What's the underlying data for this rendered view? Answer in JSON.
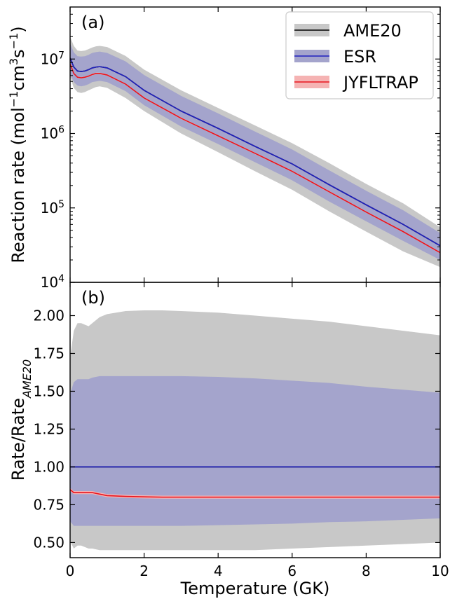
{
  "chart_data": [
    {
      "type": "area",
      "panel_label": "(a)",
      "ylabel": "Reaction rate (mol⁻¹cm³s⁻¹)",
      "yscale": "log",
      "xlim": [
        0,
        10
      ],
      "ylim": [
        10000,
        50000000
      ],
      "yticks": [
        10000,
        100000,
        1000000,
        10000000
      ],
      "ytick_labels": [
        {
          "base": "10",
          "exp": "4"
        },
        {
          "base": "10",
          "exp": "5"
        },
        {
          "base": "10",
          "exp": "6"
        },
        {
          "base": "10",
          "exp": "7"
        }
      ],
      "legend_position": "top-right",
      "x": [
        0,
        0.1,
        0.2,
        0.3,
        0.4,
        0.5,
        0.6,
        0.7,
        0.8,
        1,
        1.5,
        2,
        3,
        4,
        5,
        6,
        7,
        8,
        9,
        10
      ],
      "series": [
        {
          "name": "AME20",
          "line_color": "#000000",
          "band_color": "#c8c8c8",
          "center": [
            10300000,
            7800000,
            6900000,
            6800000,
            6900000,
            7200000,
            7600000,
            7800000,
            7900000,
            7600000,
            5800000,
            3800000,
            2000000,
            1170000,
            670000,
            390000,
            205000,
            110000,
            60000,
            31000
          ],
          "lower": [
            5800000,
            4100000,
            3600000,
            3500000,
            3600000,
            3800000,
            4000000,
            4200000,
            4300000,
            4100000,
            3000000,
            2000000,
            1000000,
            560000,
            310000,
            175000,
            90000,
            48000,
            26000,
            16000
          ],
          "upper": [
            20000000,
            15000000,
            13000000,
            12800000,
            13000000,
            13600000,
            14300000,
            14800000,
            15000000,
            14500000,
            11000000,
            7200000,
            3800000,
            2200000,
            1280000,
            740000,
            400000,
            210000,
            115000,
            55000
          ]
        },
        {
          "name": "ESR",
          "line_color": "#1f1fbf",
          "band_color": "#a4a4cc",
          "center": [
            10300000,
            7800000,
            6900000,
            6800000,
            6900000,
            7200000,
            7600000,
            7800000,
            7900000,
            7600000,
            5800000,
            3800000,
            2000000,
            1170000,
            670000,
            390000,
            205000,
            110000,
            60000,
            31000
          ],
          "lower": [
            6300000,
            4900000,
            4400000,
            4300000,
            4400000,
            4600000,
            4900000,
            5000000,
            5100000,
            4900000,
            3700000,
            2400000,
            1240000,
            720000,
            410000,
            235000,
            122000,
            66000,
            36000,
            20000
          ],
          "upper": [
            16300000,
            12300000,
            10900000,
            10800000,
            10900000,
            11400000,
            12100000,
            12400000,
            12600000,
            12100000,
            9300000,
            6100000,
            3200000,
            1860000,
            1060000,
            610000,
            320000,
            170000,
            93000,
            46000
          ]
        },
        {
          "name": "JYFLTRAP",
          "line_color": "#e8141e",
          "band_color": "#f5b3b3",
          "center": [
            8600000,
            6400000,
            5700000,
            5600000,
            5700000,
            5900000,
            6200000,
            6400000,
            6400000,
            6100000,
            4600000,
            3000000,
            1600000,
            930000,
            540000,
            310000,
            165000,
            88000,
            48000,
            25000
          ],
          "lower": [
            8400000,
            6250000,
            5570000,
            5470000,
            5570000,
            5770000,
            6050000,
            6250000,
            6250000,
            5960000,
            4500000,
            2930000,
            1560000,
            910000,
            528000,
            303000,
            161000,
            86000,
            47000,
            24400
          ],
          "upper": [
            8800000,
            6550000,
            5830000,
            5730000,
            5830000,
            6030000,
            6350000,
            6550000,
            6550000,
            6240000,
            4700000,
            3070000,
            1640000,
            950000,
            552000,
            317000,
            169000,
            90000,
            49000,
            25600
          ]
        }
      ]
    },
    {
      "type": "area",
      "panel_label": "(b)",
      "ylabel": "Rate/Rate",
      "ylabel_sub": "AME20",
      "xlabel": "Temperature (GK)",
      "xlim": [
        0,
        10
      ],
      "ylim": [
        0.4,
        2.22
      ],
      "xticks": [
        0,
        2,
        4,
        6,
        8,
        10
      ],
      "xtick_labels": [
        "0",
        "2",
        "4",
        "6",
        "8",
        "10"
      ],
      "yticks": [
        0.5,
        0.75,
        1.0,
        1.25,
        1.5,
        1.75,
        2.0
      ],
      "ytick_labels": [
        "0.50",
        "0.75",
        "1.00",
        "1.25",
        "1.50",
        "1.75",
        "2.00"
      ],
      "x": [
        0,
        0.1,
        0.2,
        0.3,
        0.4,
        0.5,
        0.6,
        0.8,
        1,
        1.5,
        2,
        2.5,
        3,
        4,
        5,
        6,
        7,
        8,
        9,
        10
      ],
      "series": [
        {
          "name": "AME20",
          "line_color": "#000000",
          "band_color": "#c8c8c8",
          "center": [
            1,
            1,
            1,
            1,
            1,
            1,
            1,
            1,
            1,
            1,
            1,
            1,
            1,
            1,
            1,
            1,
            1,
            1,
            1,
            1
          ],
          "lower": [
            0.51,
            0.46,
            0.48,
            0.48,
            0.47,
            0.46,
            0.46,
            0.45,
            0.45,
            0.45,
            0.45,
            0.45,
            0.45,
            0.45,
            0.45,
            0.46,
            0.47,
            0.48,
            0.49,
            0.5
          ],
          "upper": [
            1.72,
            1.9,
            1.95,
            1.95,
            1.94,
            1.93,
            1.95,
            1.99,
            2.01,
            2.03,
            2.035,
            2.035,
            2.03,
            2.02,
            2.0,
            1.98,
            1.96,
            1.93,
            1.9,
            1.87
          ]
        },
        {
          "name": "ESR",
          "line_color": "#1f1fbf",
          "band_color": "#a4a4cc",
          "center": [
            1,
            1,
            1,
            1,
            1,
            1,
            1,
            1,
            1,
            1,
            1,
            1,
            1,
            1,
            1,
            1,
            1,
            1,
            1,
            1
          ],
          "lower": [
            0.64,
            0.61,
            0.61,
            0.61,
            0.61,
            0.61,
            0.61,
            0.61,
            0.61,
            0.61,
            0.61,
            0.61,
            0.61,
            0.615,
            0.62,
            0.625,
            0.635,
            0.64,
            0.65,
            0.66
          ],
          "upper": [
            1.48,
            1.56,
            1.58,
            1.58,
            1.58,
            1.58,
            1.59,
            1.6,
            1.6,
            1.6,
            1.6,
            1.6,
            1.6,
            1.595,
            1.585,
            1.57,
            1.555,
            1.53,
            1.51,
            1.49
          ]
        },
        {
          "name": "JYFLTRAP",
          "line_color": "#e8141e",
          "band_color": "#f5b3b3",
          "center": [
            0.85,
            0.83,
            0.83,
            0.83,
            0.83,
            0.83,
            0.83,
            0.82,
            0.81,
            0.805,
            0.802,
            0.8,
            0.8,
            0.8,
            0.8,
            0.8,
            0.8,
            0.8,
            0.8,
            0.8
          ],
          "lower": [
            0.84,
            0.82,
            0.82,
            0.82,
            0.82,
            0.82,
            0.82,
            0.81,
            0.8,
            0.795,
            0.792,
            0.79,
            0.79,
            0.79,
            0.79,
            0.79,
            0.79,
            0.79,
            0.79,
            0.79
          ],
          "upper": [
            0.86,
            0.84,
            0.84,
            0.84,
            0.84,
            0.84,
            0.84,
            0.83,
            0.82,
            0.815,
            0.812,
            0.81,
            0.81,
            0.81,
            0.81,
            0.81,
            0.81,
            0.81,
            0.81,
            0.81
          ]
        }
      ]
    }
  ]
}
